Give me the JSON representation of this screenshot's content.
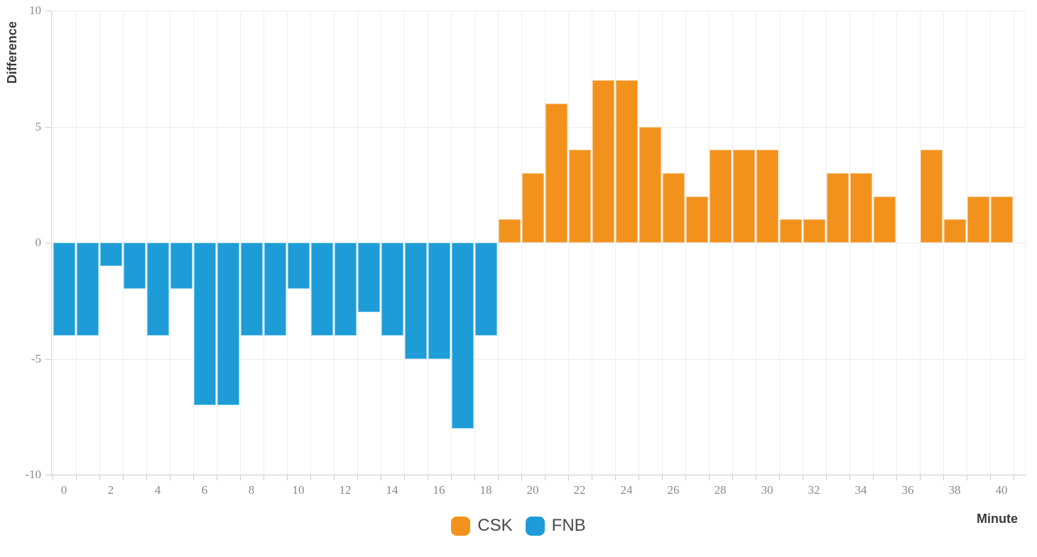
{
  "chart": {
    "y_axis_title": "Difference",
    "x_axis_title": "Minute",
    "legend": {
      "items": [
        {
          "label": "CSK",
          "color": "#F2921D"
        },
        {
          "label": "FNB",
          "color": "#1E9CD7"
        }
      ]
    }
  },
  "chart_data": {
    "type": "bar",
    "title": "",
    "xlabel": "Minute",
    "ylabel": "Difference",
    "x": [
      0,
      1,
      2,
      3,
      4,
      5,
      6,
      7,
      8,
      9,
      10,
      11,
      12,
      13,
      14,
      15,
      16,
      17,
      18,
      19,
      20,
      21,
      22,
      23,
      24,
      25,
      26,
      27,
      28,
      29,
      30,
      31,
      32,
      33,
      34,
      35,
      36,
      37,
      38,
      39,
      40
    ],
    "xtick_labels": [
      "0",
      "2",
      "4",
      "6",
      "8",
      "10",
      "12",
      "14",
      "16",
      "18",
      "20",
      "22",
      "24",
      "26",
      "28",
      "30",
      "32",
      "34",
      "36",
      "38",
      "40"
    ],
    "xtick_step": 2,
    "yticks": [
      10,
      5,
      0,
      -5,
      -10
    ],
    "ylim": [
      -10,
      10
    ],
    "grid": true,
    "legend_position": "bottom-center",
    "series": [
      {
        "name": "CSK",
        "color": "#F2921D",
        "edge_color": "#F8C180",
        "values": [
          null,
          null,
          null,
          null,
          null,
          null,
          null,
          null,
          null,
          null,
          null,
          null,
          null,
          null,
          null,
          null,
          null,
          null,
          null,
          1,
          3,
          6,
          4,
          7,
          7,
          5,
          3,
          2,
          4,
          4,
          4,
          1,
          1,
          3,
          3,
          2,
          0,
          4,
          1,
          2,
          2
        ]
      },
      {
        "name": "FNB",
        "color": "#1E9CD7",
        "edge_color": "#7FCBEC",
        "values": [
          -4,
          -4,
          -1,
          -2,
          -4,
          -2,
          -7,
          -7,
          -4,
          -4,
          -2,
          -4,
          -4,
          -3,
          -4,
          -5,
          -5,
          -8,
          -4,
          null,
          null,
          null,
          null,
          null,
          null,
          null,
          null,
          null,
          null,
          null,
          null,
          null,
          null,
          null,
          null,
          null,
          null,
          null,
          null,
          null,
          null
        ]
      }
    ]
  }
}
